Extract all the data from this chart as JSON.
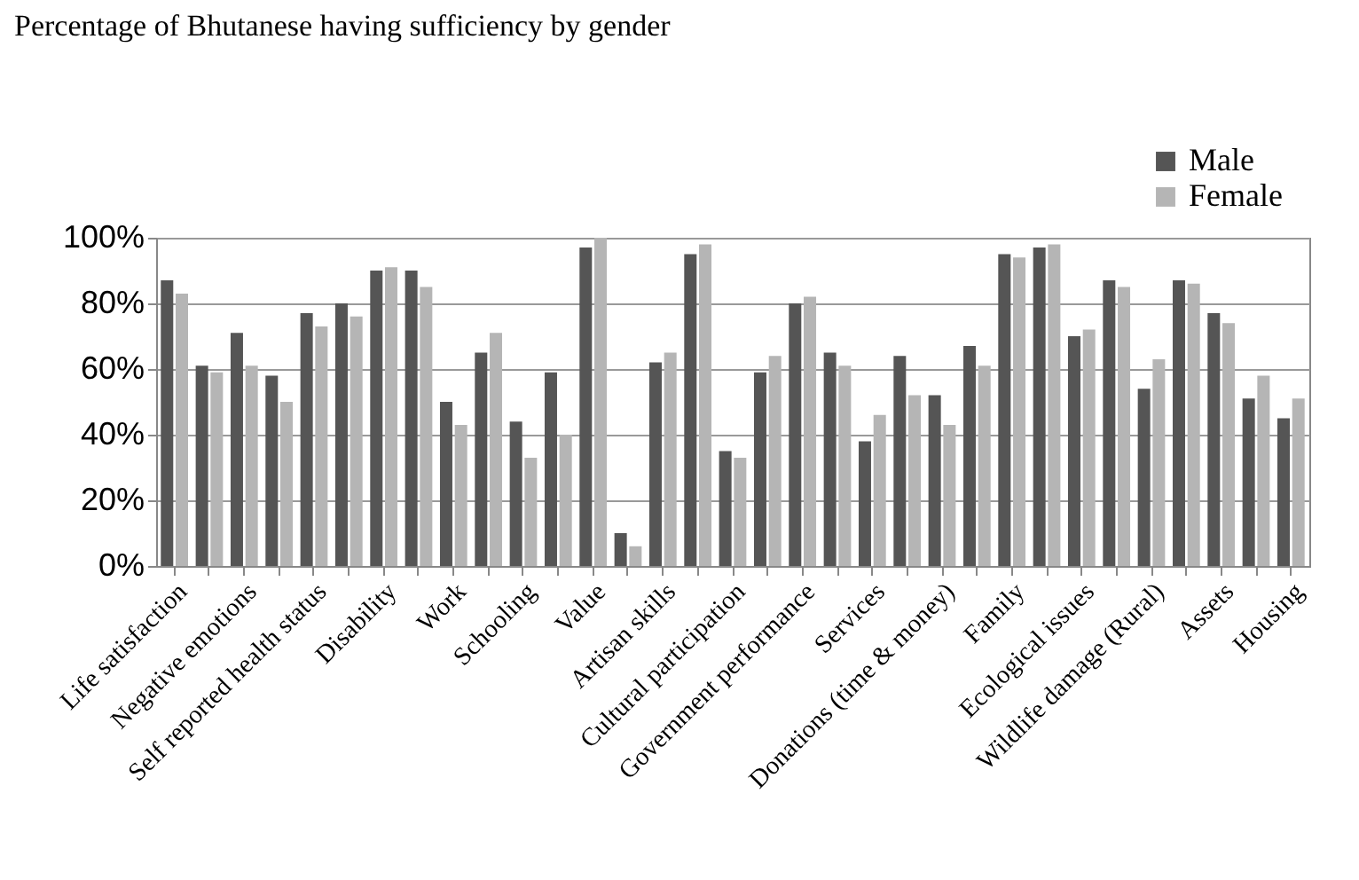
{
  "chart_data": {
    "type": "bar",
    "title": "Percentage of Bhutanese having sufficiency by gender",
    "categories": [
      "Life satisfaction",
      null,
      "Negative emotions",
      null,
      "Self reported health status",
      null,
      "Disability",
      null,
      "Work",
      null,
      "Schooling",
      null,
      "Value",
      null,
      "Artisan skills",
      null,
      "Cultural participation",
      null,
      "Government performance",
      null,
      "Services",
      null,
      "Donations (time & money)",
      null,
      "Family",
      null,
      "Ecological issues",
      null,
      "Wildlife damage (Rural)",
      null,
      "Assets",
      null,
      "Housing"
    ],
    "series": [
      {
        "name": "Male",
        "color": "#555555",
        "values": [
          87,
          61,
          71,
          58,
          77,
          80,
          90,
          90,
          50,
          65,
          44,
          59,
          97,
          10,
          62,
          95,
          35,
          59,
          80,
          65,
          38,
          64,
          52,
          67,
          95,
          97,
          70,
          87,
          54,
          87,
          77,
          51,
          45
        ]
      },
      {
        "name": "Female",
        "color": "#b5b5b5",
        "values": [
          83,
          59,
          61,
          50,
          73,
          76,
          91,
          85,
          43,
          71,
          33,
          40,
          100,
          6,
          65,
          98,
          33,
          64,
          82,
          61,
          46,
          52,
          43,
          61,
          94,
          98,
          72,
          85,
          63,
          86,
          74,
          58,
          51
        ]
      }
    ],
    "ylim": [
      0,
      100
    ],
    "yticks": [
      {
        "value": 0,
        "label": "0%"
      },
      {
        "value": 20,
        "label": "20%"
      },
      {
        "value": 40,
        "label": "40%"
      },
      {
        "value": 60,
        "label": "60%"
      },
      {
        "value": 80,
        "label": "80%"
      },
      {
        "value": 100,
        "label": "100%"
      }
    ],
    "grid": "y",
    "legend": "top right"
  }
}
